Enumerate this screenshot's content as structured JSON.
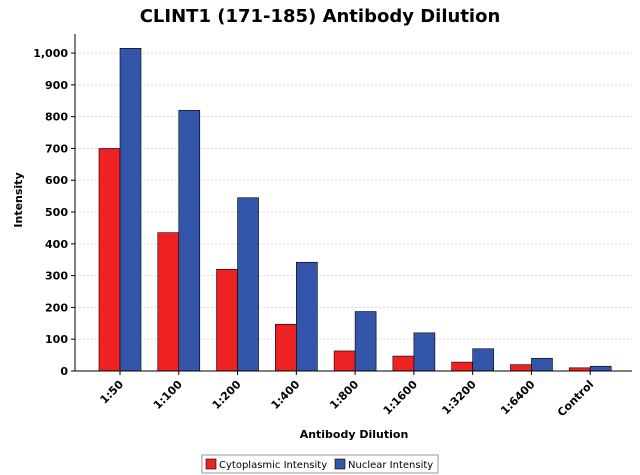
{
  "chart_data": {
    "type": "bar",
    "title": "CLINT1 (171-185) Antibody Dilution",
    "xlabel": "Antibody Dilution",
    "ylabel": "Intensity",
    "ylim": [
      0,
      1060
    ],
    "yticks": [
      0,
      100,
      200,
      300,
      400,
      500,
      600,
      700,
      800,
      900,
      1000
    ],
    "ytick_labels": [
      "0",
      "100",
      "200",
      "300",
      "400",
      "500",
      "600",
      "700",
      "800",
      "900",
      "1,000"
    ],
    "categories": [
      "1:50",
      "1:100",
      "1:200",
      "1:400",
      "1:800",
      "1:1600",
      "1:3200",
      "1:6400",
      "Control"
    ],
    "series": [
      {
        "name": "Cytoplasmic Intensity",
        "color": "#ee2222",
        "values": [
          700,
          435,
          320,
          147,
          63,
          47,
          28,
          20,
          10
        ]
      },
      {
        "name": "Nuclear Intensity",
        "color": "#3355aa",
        "values": [
          1015,
          820,
          545,
          342,
          187,
          120,
          70,
          40,
          15
        ]
      }
    ],
    "grid": true,
    "legend": "bottom"
  }
}
